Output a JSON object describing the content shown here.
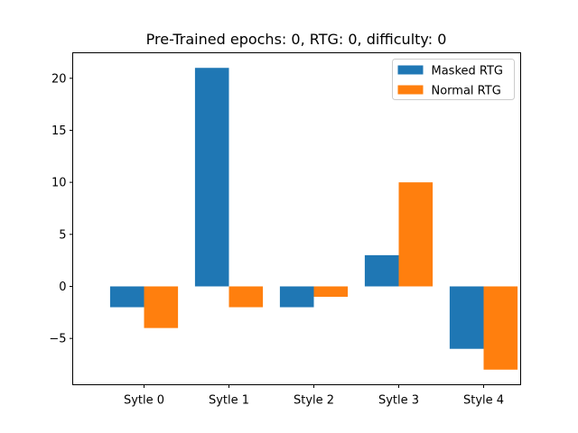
{
  "chart_data": {
    "type": "bar",
    "title": "Pre-Trained epochs: 0, RTG: 0, difficulty: 0",
    "xlabel": "",
    "ylabel": "",
    "categories": [
      "Sytle 0",
      "Sytle 1",
      "Style 2",
      "Sytle 3",
      "Style 4"
    ],
    "series": [
      {
        "name": "Masked RTG",
        "values": [
          -2,
          21,
          -2,
          3,
          -6
        ],
        "color": "#1f77b4"
      },
      {
        "name": "Normal RTG",
        "values": [
          -4,
          -2,
          -1,
          10,
          -8
        ],
        "color": "#ff7f0e"
      }
    ],
    "ylim": [
      -9.45,
      22.45
    ],
    "yticks": [
      -5,
      0,
      5,
      10,
      15,
      20
    ],
    "ytick_labels": [
      "−5",
      "0",
      "5",
      "10",
      "15",
      "20"
    ],
    "legend_position": "top-right",
    "grid": false
  }
}
